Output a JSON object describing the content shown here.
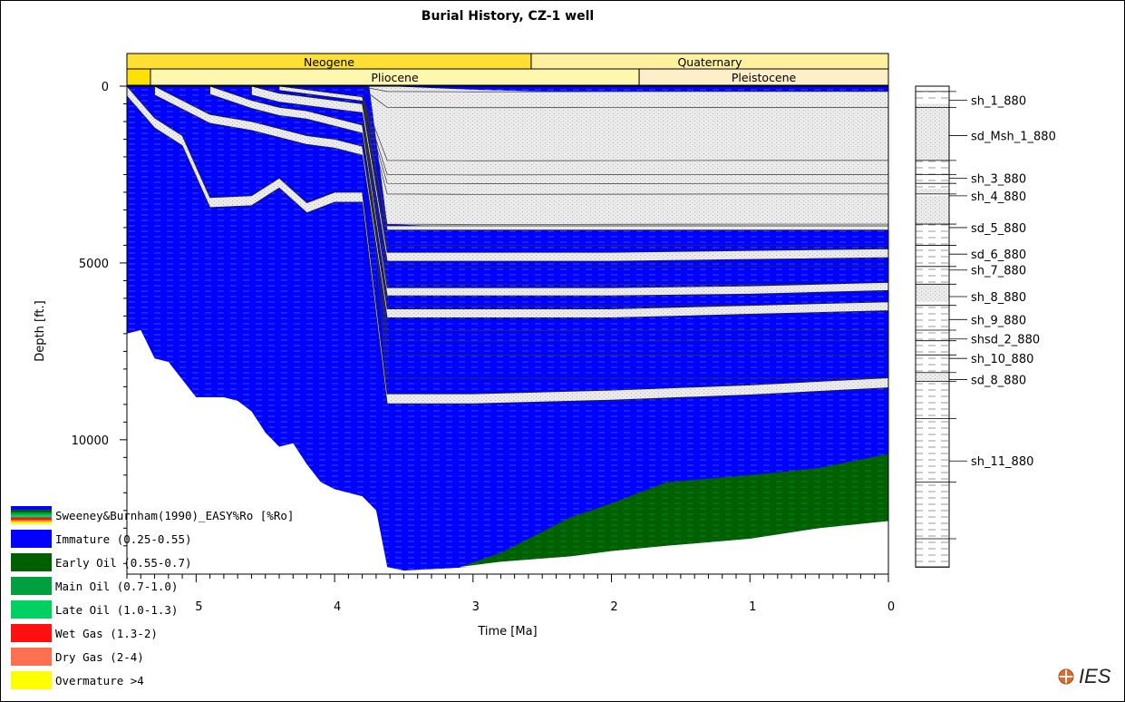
{
  "chart_data": {
    "type": "area",
    "title": "Burial History, CZ-1 well",
    "xlabel": "Time [Ma]",
    "ylabel": "Depth [ft.]",
    "xlim": [
      5.5,
      0
    ],
    "ylim": [
      0,
      13800
    ],
    "x_ticks": [
      "5",
      "4",
      "3",
      "2",
      "1",
      "0"
    ],
    "y_ticks": [
      "0",
      "5000",
      "10000"
    ],
    "x_tick_values": [
      5,
      4,
      3,
      2,
      1,
      0
    ],
    "y_tick_values": [
      0,
      5000,
      10000
    ],
    "periods": [
      {
        "name": "Neogene",
        "start": 5.5,
        "end": 2.58,
        "color": "#ffdf33"
      },
      {
        "name": "Quaternary",
        "start": 2.58,
        "end": 0,
        "color": "#fff0a0"
      }
    ],
    "epochs": [
      {
        "name": "",
        "start": 5.5,
        "end": 5.33,
        "color": "#ffe000"
      },
      {
        "name": "Pliocene",
        "start": 5.33,
        "end": 1.8,
        "color": "#fff6b0"
      },
      {
        "name": "Pleistocene",
        "start": 1.8,
        "end": 0,
        "color": "#ffefc8"
      }
    ],
    "basement_top": {
      "x": [
        5.5,
        5.4,
        5.3,
        5.2,
        5.1,
        5.0,
        4.9,
        4.8,
        4.7,
        4.6,
        4.5,
        4.4,
        4.3,
        4.2,
        4.1,
        4.0,
        3.9,
        3.8,
        3.7,
        3.62,
        3.5,
        3.0
      ],
      "depth": [
        7000,
        6900,
        7700,
        7800,
        8300,
        8800,
        8800,
        8800,
        8900,
        9200,
        9800,
        10200,
        10100,
        10700,
        11200,
        11400,
        11500,
        11600,
        12000,
        13600,
        13700,
        13600
      ]
    },
    "early_oil_zone": {
      "x": [
        3.1,
        2.8,
        2.3,
        2.0,
        1.6,
        1.0,
        0.5,
        0
      ],
      "top_depth": [
        13600,
        13200,
        12200,
        11800,
        11200,
        11000,
        10800,
        10400
      ],
      "bottom_depth": [
        13600,
        13450,
        13300,
        13150,
        13000,
        12800,
        12500,
        12300
      ]
    },
    "shallow_sand_package": {
      "x": [
        3.75,
        3.62,
        3.3,
        3.0,
        2.5,
        2.0,
        1.5,
        1.0,
        0.5,
        0
      ],
      "top_depth": [
        0,
        0,
        50,
        100,
        150,
        150,
        150,
        150,
        150,
        150
      ],
      "bottom_depth": [
        0,
        3900,
        3950,
        3950,
        3950,
        3950,
        3950,
        3950,
        3950,
        3950
      ]
    },
    "sand_beds": [
      {
        "x": [
          5.5,
          5.3,
          5.1,
          4.9,
          4.6,
          4.4,
          4.2,
          4.0,
          3.8,
          3.62,
          3.0,
          2.0,
          1.0,
          0
        ],
        "depth": [
          0,
          900,
          1400,
          3150,
          3100,
          2600,
          3300,
          3000,
          3000,
          8700,
          8700,
          8600,
          8450,
          8250
        ],
        "thickness": 280
      },
      {
        "x": [
          5.3,
          5.1,
          4.9,
          4.6,
          4.4,
          4.2,
          4.0,
          3.8,
          3.62,
          3.0,
          2.0,
          1.0,
          0
        ],
        "depth": [
          0,
          400,
          800,
          1000,
          1200,
          1400,
          1500,
          1700,
          6300,
          6300,
          6300,
          6200,
          6100
        ],
        "thickness": 250
      },
      {
        "x": [
          4.9,
          4.6,
          4.4,
          4.2,
          4.0,
          3.8,
          3.62,
          3.0,
          2.0,
          1.0,
          0
        ],
        "depth": [
          0,
          400,
          600,
          700,
          900,
          1100,
          5700,
          5700,
          5700,
          5650,
          5550
        ],
        "thickness": 230
      },
      {
        "x": [
          4.6,
          4.4,
          4.2,
          4.0,
          3.8,
          3.62,
          3.0,
          2.0,
          1.0,
          0
        ],
        "depth": [
          0,
          200,
          300,
          400,
          500,
          4700,
          4700,
          4700,
          4650,
          4600
        ],
        "thickness": 250
      },
      {
        "x": [
          4.4,
          4.2,
          4.0,
          3.8,
          3.62,
          3.0,
          2.0,
          1.0,
          0
        ],
        "depth": [
          0,
          100,
          200,
          300,
          3950,
          3950,
          3950,
          3950,
          3950
        ],
        "thickness": 120
      }
    ],
    "horizon_depths_present_day": [
      150,
      600,
      2100,
      2500,
      2750,
      3050,
      3900,
      4500,
      5100,
      5600,
      6200,
      6900,
      7200,
      7600,
      8250
    ],
    "well_column": [
      {
        "label": "sh_1_880",
        "depth": 400
      },
      {
        "label": "sd_Msh_1_880",
        "depth": 1400
      },
      {
        "label": "sh_3_880",
        "depth": 2600
      },
      {
        "label": "sh_4_880",
        "depth": 3100
      },
      {
        "label": "sd_5_880",
        "depth": 4000
      },
      {
        "label": "sd_6_880",
        "depth": 4750
      },
      {
        "label": "sh_7_880",
        "depth": 5200
      },
      {
        "label": "sh_8_880",
        "depth": 5950
      },
      {
        "label": "sh_9_880",
        "depth": 6600
      },
      {
        "label": "shsd_2_880",
        "depth": 7150
      },
      {
        "label": "sh_10_880",
        "depth": 7700
      },
      {
        "label": "sd_8_880",
        "depth": 8300
      },
      {
        "label": "sh_11_880",
        "depth": 10600
      }
    ],
    "well_column_bottom_depth": 13600,
    "legend_placement": "bottom-left",
    "grid": false
  },
  "legend": {
    "title": "Sweeney&Burnham(1990)_EASY%Ro [%Ro]",
    "items": [
      {
        "label": "Immature (0.25-0.55)",
        "color": "#0000ff"
      },
      {
        "label": "Early Oil (0.55-0.7)",
        "color": "#006000"
      },
      {
        "label": "Main Oil (0.7-1.0)",
        "color": "#00a040"
      },
      {
        "label": "Late Oil (1.0-1.3)",
        "color": "#00d060"
      },
      {
        "label": "Wet Gas (1.3-2)",
        "color": "#ff1010"
      },
      {
        "label": "Dry Gas (2-4)",
        "color": "#ff7050"
      },
      {
        "label": "Overmature >4",
        "color": "#ffff00"
      }
    ]
  },
  "logo": {
    "text": "IES",
    "icon": "ies-globe-icon"
  },
  "colors": {
    "immature": "#0000ff",
    "early_oil": "#006000",
    "sand": "#e4e4e4",
    "sand_bed": "#ececec"
  }
}
